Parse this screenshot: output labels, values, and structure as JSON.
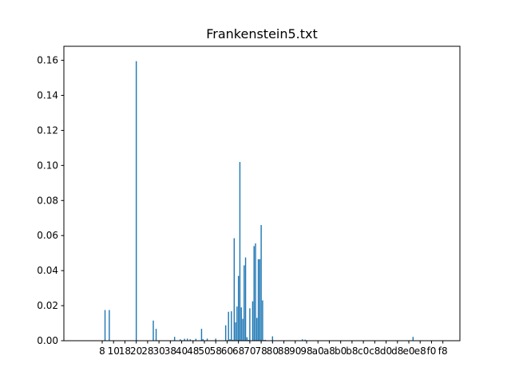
{
  "chart_data": {
    "type": "bar",
    "title": "Frankenstein5.txt",
    "xlabel": "",
    "ylabel": "",
    "ylim": [
      0,
      0.168
    ],
    "xlim": [
      -19,
      260
    ],
    "grid": false,
    "bar_color": "#1f77b4",
    "x_ticks": [
      {
        "value": 8,
        "label": "8"
      },
      {
        "value": 16,
        "label": "10"
      },
      {
        "value": 24,
        "label": "18"
      },
      {
        "value": 32,
        "label": "20"
      },
      {
        "value": 40,
        "label": "28"
      },
      {
        "value": 48,
        "label": "30"
      },
      {
        "value": 56,
        "label": "38"
      },
      {
        "value": 64,
        "label": "40"
      },
      {
        "value": 72,
        "label": "48"
      },
      {
        "value": 80,
        "label": "50"
      },
      {
        "value": 88,
        "label": "58"
      },
      {
        "value": 96,
        "label": "60"
      },
      {
        "value": 104,
        "label": "68"
      },
      {
        "value": 112,
        "label": "70"
      },
      {
        "value": 120,
        "label": "78"
      },
      {
        "value": 128,
        "label": "80"
      },
      {
        "value": 136,
        "label": "88"
      },
      {
        "value": 144,
        "label": "90"
      },
      {
        "value": 152,
        "label": "98"
      },
      {
        "value": 160,
        "label": "a0"
      },
      {
        "value": 168,
        "label": "a8"
      },
      {
        "value": 176,
        "label": "b0"
      },
      {
        "value": 184,
        "label": "b8"
      },
      {
        "value": 192,
        "label": "c0"
      },
      {
        "value": 200,
        "label": "c8"
      },
      {
        "value": 208,
        "label": "d0"
      },
      {
        "value": 216,
        "label": "d8"
      },
      {
        "value": 224,
        "label": "e0"
      },
      {
        "value": 232,
        "label": "e8"
      },
      {
        "value": 240,
        "label": "f0"
      },
      {
        "value": 248,
        "label": "f8"
      }
    ],
    "y_ticks": [
      {
        "value": 0.0,
        "label": "0.00"
      },
      {
        "value": 0.02,
        "label": "0.02"
      },
      {
        "value": 0.04,
        "label": "0.04"
      },
      {
        "value": 0.06,
        "label": "0.06"
      },
      {
        "value": 0.08,
        "label": "0.08"
      },
      {
        "value": 0.1,
        "label": "0.10"
      },
      {
        "value": 0.12,
        "label": "0.12"
      },
      {
        "value": 0.14,
        "label": "0.14"
      },
      {
        "value": 0.16,
        "label": "0.16"
      }
    ],
    "series": [
      {
        "x": [
          10,
          13,
          32,
          44,
          46,
          59,
          63,
          66,
          68,
          70,
          74,
          78,
          79,
          82,
          88,
          95,
          97,
          98,
          99,
          100,
          101,
          102,
          103,
          104,
          105,
          106,
          107,
          108,
          109,
          110,
          111,
          112,
          114,
          115,
          116,
          117,
          118,
          119,
          120,
          121,
          122,
          123,
          128,
          149,
          151,
          227
        ],
        "values": [
          0.0175,
          0.0175,
          0.1595,
          0.0115,
          0.0068,
          0.0022,
          0.0008,
          0.0011,
          0.0012,
          0.0008,
          0.0011,
          0.0068,
          0.0009,
          0.0012,
          0.0012,
          0.0088,
          0.0165,
          0.0008,
          0.0168,
          0.0005,
          0.0585,
          0.0105,
          0.0195,
          0.037,
          0.102,
          0.019,
          0.0125,
          0.043,
          0.0475,
          0.002,
          0.0005,
          0.0185,
          0.0225,
          0.054,
          0.0555,
          0.013,
          0.0465,
          0.0465,
          0.066,
          0.023,
          0.0004,
          0.0005,
          0.0025,
          0.0008,
          0.0006,
          0.0022
        ]
      }
    ]
  }
}
